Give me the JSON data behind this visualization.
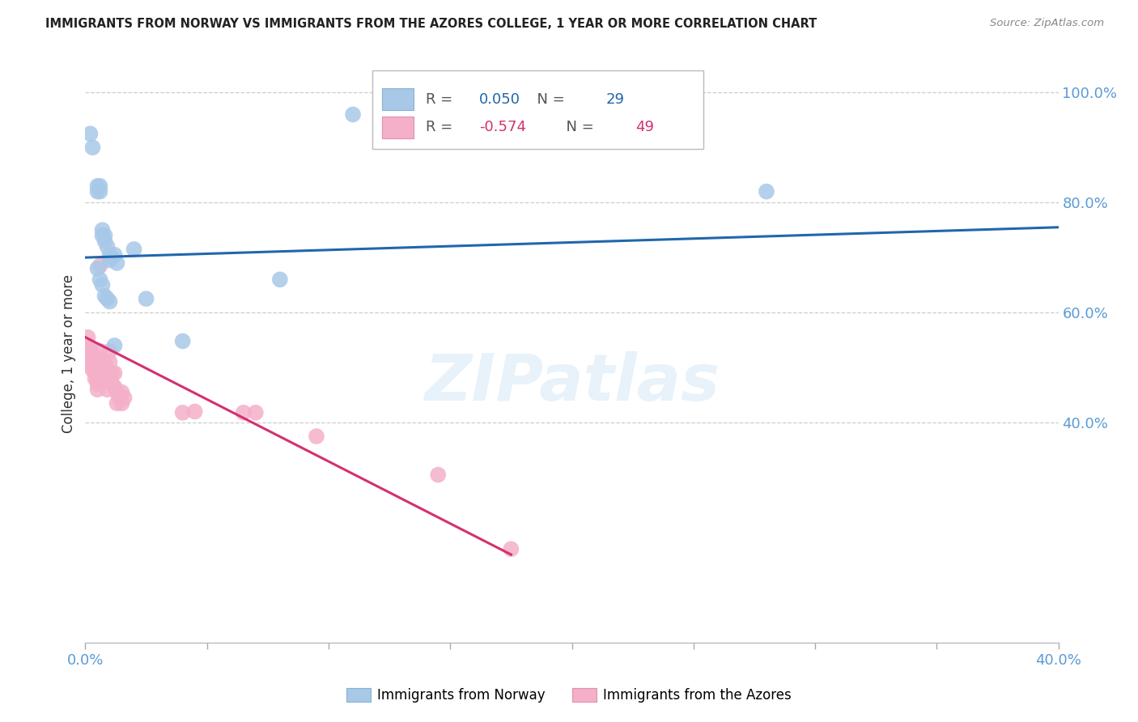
{
  "title": "IMMIGRANTS FROM NORWAY VS IMMIGRANTS FROM THE AZORES COLLEGE, 1 YEAR OR MORE CORRELATION CHART",
  "source": "Source: ZipAtlas.com",
  "ylabel": "College, 1 year or more",
  "norway_label": "Immigrants from Norway",
  "azores_label": "Immigrants from the Azores",
  "norway_R": "0.050",
  "norway_N": "29",
  "azores_R": "-0.574",
  "azores_N": "49",
  "norway_color": "#a8c8e8",
  "norway_line_color": "#2166ac",
  "azores_color": "#f4b0c8",
  "azores_line_color": "#d43070",
  "norway_x": [
    0.002,
    0.003,
    0.005,
    0.005,
    0.006,
    0.006,
    0.007,
    0.007,
    0.008,
    0.008,
    0.009,
    0.01,
    0.01,
    0.011,
    0.012,
    0.013,
    0.02,
    0.025,
    0.04,
    0.08,
    0.11,
    0.28,
    0.005,
    0.006,
    0.007,
    0.008,
    0.009,
    0.01,
    0.012
  ],
  "norway_y": [
    0.925,
    0.9,
    0.83,
    0.82,
    0.83,
    0.82,
    0.75,
    0.74,
    0.74,
    0.73,
    0.72,
    0.705,
    0.695,
    0.7,
    0.705,
    0.69,
    0.715,
    0.625,
    0.548,
    0.66,
    0.96,
    0.82,
    0.68,
    0.66,
    0.65,
    0.63,
    0.625,
    0.62,
    0.54
  ],
  "azores_x": [
    0.001,
    0.001,
    0.002,
    0.002,
    0.002,
    0.003,
    0.003,
    0.003,
    0.003,
    0.004,
    0.004,
    0.004,
    0.004,
    0.005,
    0.005,
    0.005,
    0.005,
    0.005,
    0.006,
    0.006,
    0.006,
    0.007,
    0.007,
    0.007,
    0.008,
    0.008,
    0.008,
    0.009,
    0.009,
    0.01,
    0.01,
    0.01,
    0.011,
    0.011,
    0.012,
    0.012,
    0.013,
    0.013,
    0.014,
    0.015,
    0.015,
    0.016,
    0.04,
    0.045,
    0.065,
    0.07,
    0.095,
    0.145,
    0.175
  ],
  "azores_y": [
    0.555,
    0.535,
    0.535,
    0.52,
    0.505,
    0.525,
    0.52,
    0.51,
    0.495,
    0.52,
    0.51,
    0.495,
    0.48,
    0.5,
    0.49,
    0.48,
    0.47,
    0.46,
    0.685,
    0.53,
    0.51,
    0.51,
    0.495,
    0.48,
    0.51,
    0.495,
    0.475,
    0.48,
    0.46,
    0.53,
    0.51,
    0.49,
    0.49,
    0.47,
    0.49,
    0.465,
    0.455,
    0.435,
    0.445,
    0.455,
    0.435,
    0.445,
    0.418,
    0.42,
    0.418,
    0.418,
    0.375,
    0.305,
    0.17
  ],
  "xlim": [
    0.0,
    0.4
  ],
  "ylim": [
    0.0,
    1.05
  ],
  "norway_trend_x": [
    0.0,
    0.4
  ],
  "norway_trend_y": [
    0.7,
    0.755
  ],
  "azores_trend_x": [
    0.0,
    0.175
  ],
  "azores_trend_y": [
    0.555,
    0.16
  ]
}
